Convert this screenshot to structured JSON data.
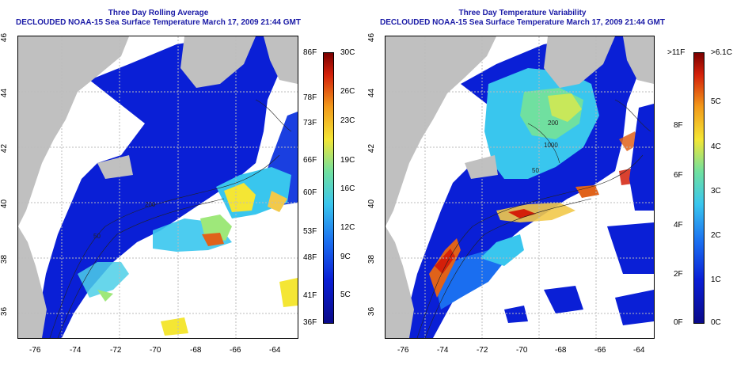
{
  "left_panel": {
    "title_line1": "Three Day Rolling Average",
    "title_line2": "DECLOUDED NOAA-15 Sea Surface Temperature March 17, 2009 21:44 GMT",
    "x_ticks": [
      "-76",
      "-74",
      "-72",
      "-70",
      "-68",
      "-66",
      "-64"
    ],
    "y_ticks": [
      "46",
      "44",
      "42",
      "40",
      "38",
      "36"
    ],
    "colorbar_f": [
      "86F",
      "78F",
      "73F",
      "66F",
      "60F",
      "53F",
      "48F",
      "41F",
      "36F"
    ],
    "colorbar_c": [
      "30C",
      "26C",
      "23C",
      "19C",
      "16C",
      "12C",
      "9C",
      "5C"
    ],
    "contour_labels": [
      "200",
      "50"
    ]
  },
  "right_panel": {
    "title_line1": "Three Day Temperature Variability",
    "title_line2": "DECLOUDED NOAA-15 Sea Surface Temperature March 17, 2009 21:44 GMT",
    "x_ticks": [
      "-76",
      "-74",
      "-72",
      "-70",
      "-68",
      "-66",
      "-64"
    ],
    "y_ticks": [
      "46",
      "44",
      "42",
      "40",
      "38",
      "36"
    ],
    "colorbar_f": [
      ">11F",
      "8F",
      "6F",
      "4F",
      "2F",
      "0F"
    ],
    "colorbar_c": [
      ">6.1C",
      "5C",
      "4C",
      "3C",
      "2C",
      "1C",
      "0C"
    ],
    "contour_labels": [
      "1000",
      "200",
      "50"
    ]
  },
  "colors": {
    "land": "#c0c0c0",
    "no_data": "#ffffff",
    "title": "#1a1aa6",
    "cold": "#0a1fd6",
    "mid": "#39c6ee",
    "warm": "#f4e634",
    "hot": "#e0621a"
  }
}
